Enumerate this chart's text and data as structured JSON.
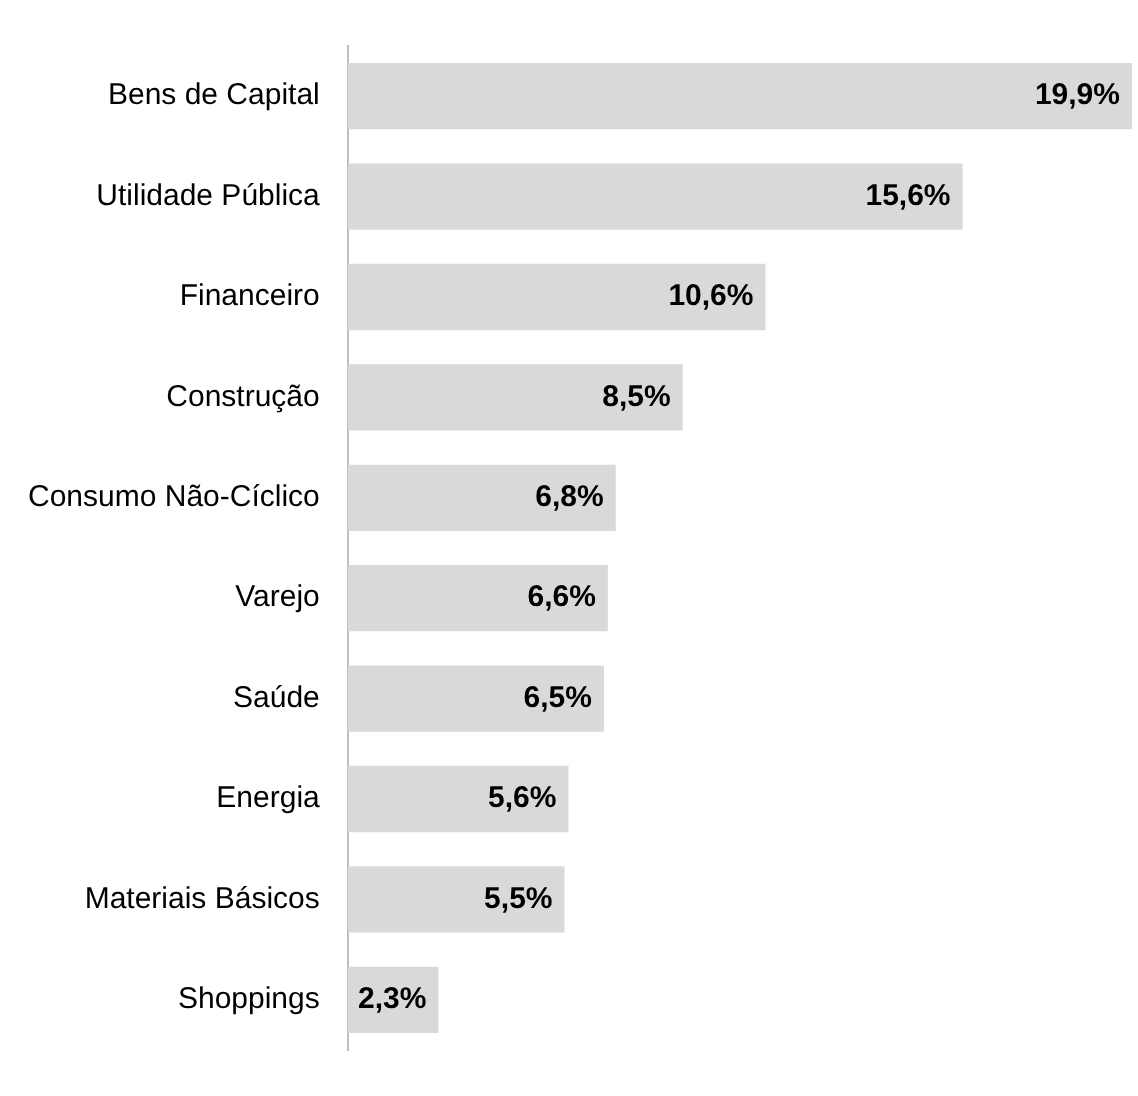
{
  "chart_data": {
    "type": "bar",
    "orientation": "horizontal",
    "categories": [
      "Bens de Capital",
      "Utilidade Pública",
      "Financeiro",
      "Construção",
      "Consumo Não-Cíclico",
      "Varejo",
      "Saúde",
      "Energia",
      "Materiais Básicos",
      "Shoppings"
    ],
    "values": [
      19.9,
      15.6,
      10.6,
      8.5,
      6.8,
      6.6,
      6.5,
      5.6,
      5.5,
      2.3
    ],
    "value_labels": [
      "19,9%",
      "15,6%",
      "10,6%",
      "8,5%",
      "6,8%",
      "6,6%",
      "6,5%",
      "5,6%",
      "5,5%",
      "2,3%"
    ],
    "color": "#d9d9d9",
    "grid": false,
    "legend": false,
    "tick_labels": "y"
  }
}
